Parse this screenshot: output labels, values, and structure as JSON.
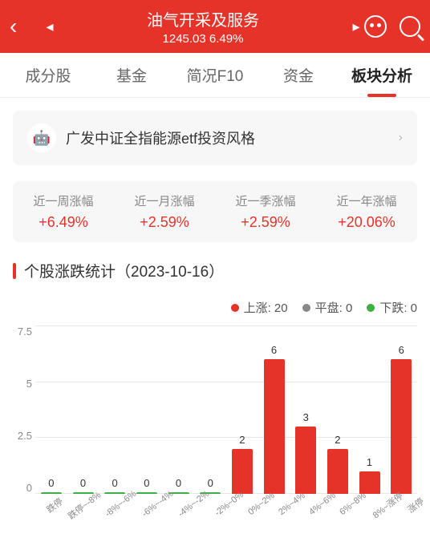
{
  "header": {
    "title": "油气开采及服务",
    "price": "1245.03",
    "change": "6.49%"
  },
  "tabs": [
    {
      "label": "成分股"
    },
    {
      "label": "基金"
    },
    {
      "label": "简况F10"
    },
    {
      "label": "资金"
    },
    {
      "label": "板块分析",
      "active": true
    }
  ],
  "banner": {
    "text": "广发中证全指能源etf投资风格"
  },
  "stats": [
    {
      "label": "近一周涨幅",
      "value": "+6.49%"
    },
    {
      "label": "近一月涨幅",
      "value": "+2.59%"
    },
    {
      "label": "近一季涨幅",
      "value": "+2.59%"
    },
    {
      "label": "近一年涨幅",
      "value": "+20.06%"
    }
  ],
  "section": {
    "title": "个股涨跌统计（2023-10-16）"
  },
  "legend": [
    {
      "label": "上涨: 20",
      "color": "#e63329"
    },
    {
      "label": "平盘: 0",
      "color": "#888888"
    },
    {
      "label": "下跌: 0",
      "color": "#3cb043"
    }
  ],
  "chart": {
    "y_max": 7.5,
    "y_ticks": [
      "7.5",
      "5",
      "2.5",
      "0"
    ],
    "background_color": "#ffffff",
    "grid_color": "#e8e8e8",
    "bars": [
      {
        "label": "跌停",
        "value": 0,
        "color": "#3cb043"
      },
      {
        "label": "跌停~-8%",
        "value": 0,
        "color": "#3cb043"
      },
      {
        "label": "-8%~-6%",
        "value": 0,
        "color": "#3cb043"
      },
      {
        "label": "-6%~-4%",
        "value": 0,
        "color": "#3cb043"
      },
      {
        "label": "-4%~-2%",
        "value": 0,
        "color": "#3cb043"
      },
      {
        "label": "-2%~0%",
        "value": 0,
        "color": "#3cb043"
      },
      {
        "label": "0%~2%",
        "value": 2,
        "color": "#e63329"
      },
      {
        "label": "2%~4%",
        "value": 6,
        "color": "#e63329"
      },
      {
        "label": "4%~6%",
        "value": 3,
        "color": "#e63329"
      },
      {
        "label": "6%~8%",
        "value": 2,
        "color": "#e63329"
      },
      {
        "label": "8%~涨停",
        "value": 1,
        "color": "#e63329"
      },
      {
        "label": "涨停",
        "value": 6,
        "color": "#e63329"
      }
    ]
  }
}
